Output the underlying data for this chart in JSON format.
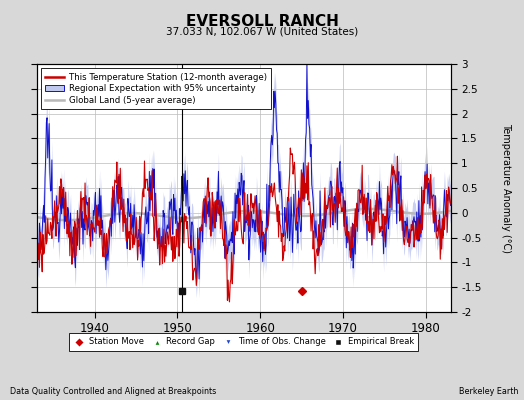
{
  "title": "EVERSOLL RANCH",
  "subtitle": "37.033 N, 102.067 W (United States)",
  "ylabel": "Temperature Anomaly (°C)",
  "xlabel_note": "Data Quality Controlled and Aligned at Breakpoints",
  "source_note": "Berkeley Earth",
  "xlim": [
    1933,
    1983
  ],
  "ylim": [
    -2.0,
    3.0
  ],
  "yticks": [
    -2.0,
    -1.5,
    -1.0,
    -0.5,
    0.0,
    0.5,
    1.0,
    1.5,
    2.0,
    2.5,
    3.0
  ],
  "ytick_labels": [
    "-2",
    "-1.5",
    "-1",
    "-0.5",
    "0",
    "0.5",
    "1",
    "1.5",
    "2",
    "2.5",
    "3"
  ],
  "xticks": [
    1940,
    1950,
    1960,
    1970,
    1980
  ],
  "bg_color": "#d8d8d8",
  "plot_bg_color": "#ffffff",
  "grid_color": "#bbbbbb",
  "regional_fill_color": "#c0c8f0",
  "regional_line_color": "#1111cc",
  "station_line_color": "#cc0000",
  "global_line_color": "#b8b8b8",
  "marker_station_move_color": "#cc0000",
  "marker_record_gap_color": "#008800",
  "marker_obs_change_color": "#2244cc",
  "marker_empirical_break_color": "#111111",
  "empirical_break_year": 1950.5,
  "station_move_year": 1965.0,
  "marker_y": -1.57,
  "vertical_line_year": 1950.5,
  "vertical_line_2_year": 1965.0
}
